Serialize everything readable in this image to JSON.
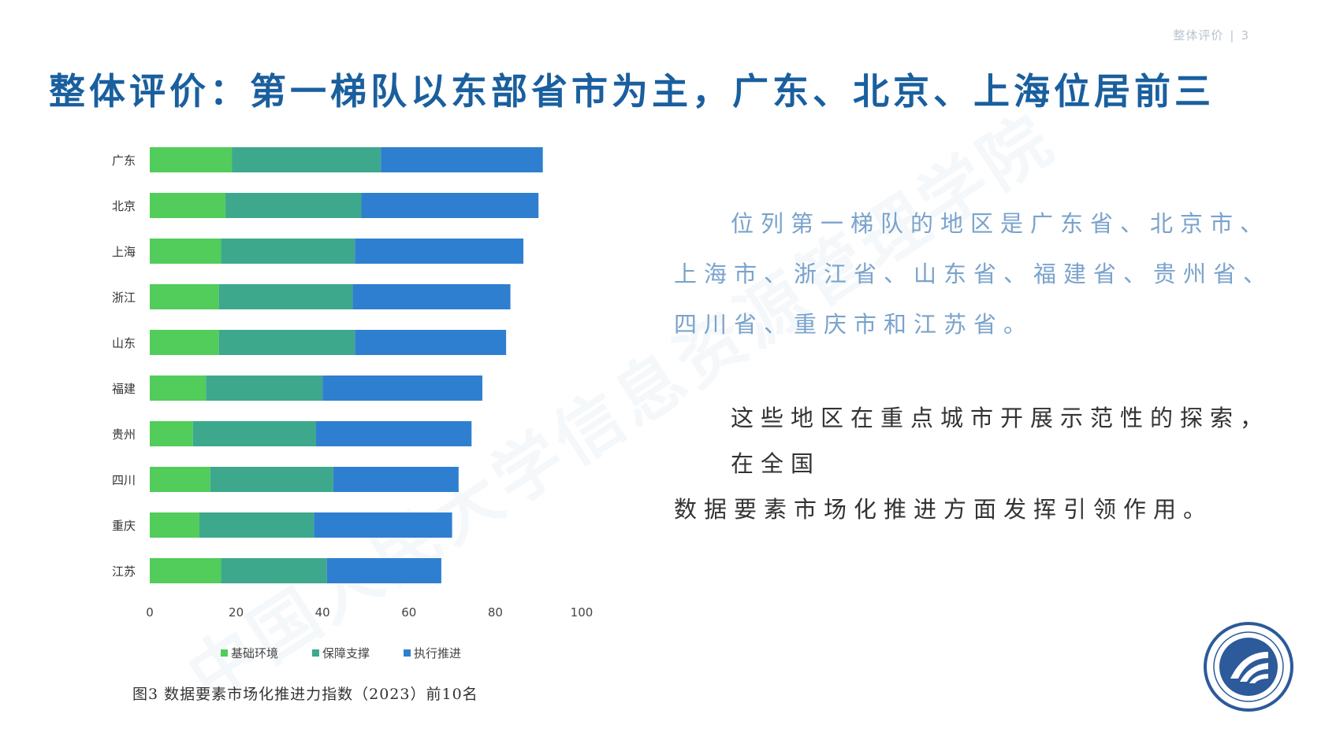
{
  "header": {
    "section": "整体评价",
    "page_number": "3"
  },
  "title": "整体评价：第一梯队以东部省市为主，广东、北京、上海位居前三",
  "text": {
    "paragraph1_lines": [
      "位列第一梯队的地区是广东省、北京市、",
      "上海市、浙江省、山东省、福建省、贵州省、",
      "四川省、重庆市和江苏省。"
    ],
    "paragraph2_lines": [
      "这些地区在重点城市开展示范性的探索，在全国",
      "数据要素市场化推进方面发挥引领作用。"
    ]
  },
  "caption": "图3  数据要素市场化推进力指数（2023）前10名",
  "watermark": "中国人民大学信息资源管理学院",
  "colors": {
    "title": "#1a5f9e",
    "series": [
      "#52cc5a",
      "#3ea88c",
      "#2f7fd0"
    ]
  },
  "chart_data": {
    "type": "bar",
    "orientation": "horizontal",
    "stacked": true,
    "categories": [
      "广东",
      "北京",
      "上海",
      "浙江",
      "山东",
      "福建",
      "贵州",
      "四川",
      "重庆",
      "江苏"
    ],
    "series": [
      {
        "name": "基础环境",
        "values": [
          19,
          17.5,
          16.5,
          16,
          16,
          13,
          10,
          14,
          11.5,
          16.5
        ]
      },
      {
        "name": "保障支撑",
        "values": [
          34.5,
          31.5,
          31,
          31,
          31.5,
          27,
          28.5,
          28.5,
          26.5,
          24.5
        ]
      },
      {
        "name": "执行推进",
        "values": [
          37.5,
          41,
          39,
          36.5,
          35,
          37,
          36,
          29,
          32,
          26.5
        ]
      }
    ],
    "xlim": [
      0,
      100
    ],
    "xticks": [
      0,
      20,
      40,
      60,
      80,
      100
    ],
    "grid": false,
    "legend_position": "bottom"
  }
}
